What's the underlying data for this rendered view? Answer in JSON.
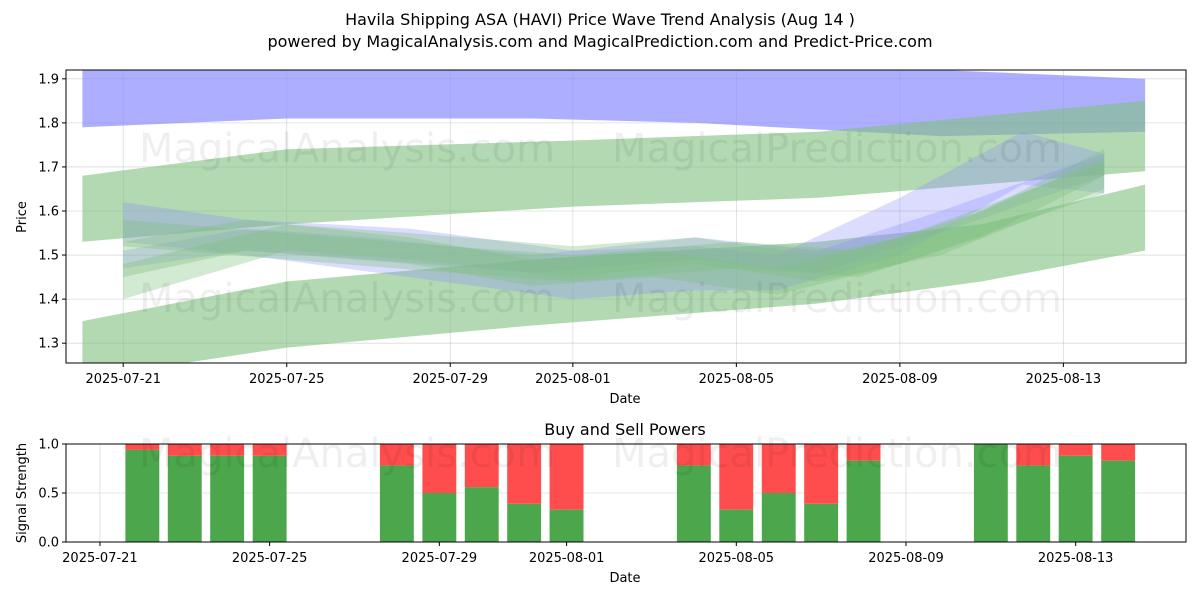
{
  "header": {
    "title": "Havila Shipping ASA (HAVI) Price Wave Trend Analysis (Aug 14 )",
    "subtitle": "powered by MagicalAnalysis.com and MagicalPrediction.com and Predict-Price.com"
  },
  "watermarks": [
    "MagicalAnalysis.com",
    "MagicalPrediction.com"
  ],
  "colors": {
    "buy": "#4ca64c",
    "sell": "#ff4d4d",
    "blue_band": "#8c8cff",
    "green_band": "#7fbf7f"
  },
  "chart_data": [
    {
      "type": "area",
      "title": "",
      "xlabel": "Date",
      "ylabel": "Price",
      "xlim": [
        "2025-07-19.6",
        "2025-08-16"
      ],
      "ylim": [
        1.255,
        1.92
      ],
      "yticks": [
        "1.3",
        "1.4",
        "1.5",
        "1.6",
        "1.7",
        "1.8",
        "1.9"
      ],
      "xticks": [
        "2025-07-21",
        "2025-07-25",
        "2025-07-29",
        "2025-08-01",
        "2025-08-05",
        "2025-08-09",
        "2025-08-13"
      ],
      "grid": true,
      "bands": [
        {
          "color": "blue",
          "opacity": 0.7,
          "x": [
            "2025-07-20",
            "2025-07-25",
            "2025-07-31",
            "2025-08-04",
            "2025-08-10",
            "2025-08-15"
          ],
          "upper": [
            1.92,
            1.92,
            1.92,
            1.92,
            1.92,
            1.9
          ],
          "lower": [
            1.79,
            1.81,
            1.81,
            1.8,
            1.77,
            1.78
          ]
        },
        {
          "color": "green",
          "opacity": 0.6,
          "x": [
            "2025-07-20",
            "2025-07-25",
            "2025-08-01",
            "2025-08-07",
            "2025-08-15"
          ],
          "upper": [
            1.68,
            1.74,
            1.76,
            1.78,
            1.85
          ],
          "lower": [
            1.53,
            1.57,
            1.61,
            1.63,
            1.69
          ]
        },
        {
          "color": "green",
          "opacity": 0.6,
          "x": [
            "2025-07-20",
            "2025-07-25",
            "2025-07-31",
            "2025-08-07",
            "2025-08-11",
            "2025-08-15"
          ],
          "upper": [
            1.35,
            1.44,
            1.49,
            1.53,
            1.57,
            1.66
          ],
          "lower": [
            1.22,
            1.29,
            1.34,
            1.39,
            1.44,
            1.51
          ]
        },
        {
          "color": "blue",
          "opacity": 0.3,
          "x": [
            "2025-07-21",
            "2025-07-24",
            "2025-07-28",
            "2025-08-01",
            "2025-08-04",
            "2025-08-06",
            "2025-08-09",
            "2025-08-12",
            "2025-08-14"
          ],
          "upper": [
            1.62,
            1.58,
            1.56,
            1.51,
            1.52,
            1.5,
            1.63,
            1.78,
            1.73
          ],
          "lower": [
            1.53,
            1.5,
            1.45,
            1.4,
            1.42,
            1.42,
            1.5,
            1.66,
            1.64
          ]
        },
        {
          "color": "blue",
          "opacity": 0.3,
          "x": [
            "2025-07-21",
            "2025-07-24",
            "2025-07-27",
            "2025-07-31",
            "2025-08-04",
            "2025-08-07",
            "2025-08-10",
            "2025-08-14"
          ],
          "upper": [
            1.51,
            1.56,
            1.54,
            1.5,
            1.54,
            1.51,
            1.6,
            1.73
          ],
          "lower": [
            1.47,
            1.51,
            1.49,
            1.46,
            1.49,
            1.46,
            1.55,
            1.68
          ]
        },
        {
          "color": "green",
          "opacity": 0.35,
          "x": [
            "2025-07-21",
            "2025-07-25",
            "2025-07-28",
            "2025-08-01",
            "2025-08-04",
            "2025-08-07",
            "2025-08-10",
            "2025-08-14"
          ],
          "upper": [
            1.48,
            1.57,
            1.55,
            1.52,
            1.54,
            1.5,
            1.56,
            1.72
          ],
          "lower": [
            1.4,
            1.51,
            1.49,
            1.45,
            1.48,
            1.44,
            1.5,
            1.65
          ]
        },
        {
          "color": "green",
          "opacity": 0.35,
          "x": [
            "2025-07-21",
            "2025-07-24",
            "2025-07-28",
            "2025-07-31",
            "2025-08-03",
            "2025-08-06",
            "2025-08-09",
            "2025-08-14"
          ],
          "upper": [
            1.53,
            1.58,
            1.54,
            1.49,
            1.51,
            1.47,
            1.54,
            1.71
          ],
          "lower": [
            1.45,
            1.51,
            1.48,
            1.43,
            1.45,
            1.41,
            1.48,
            1.64
          ]
        },
        {
          "color": "green",
          "opacity": 0.35,
          "x": [
            "2025-07-21",
            "2025-07-25",
            "2025-07-29",
            "2025-08-01",
            "2025-08-05",
            "2025-08-08",
            "2025-08-11",
            "2025-08-14"
          ],
          "upper": [
            1.58,
            1.55,
            1.52,
            1.5,
            1.53,
            1.51,
            1.6,
            1.74
          ],
          "lower": [
            1.52,
            1.49,
            1.46,
            1.44,
            1.47,
            1.45,
            1.54,
            1.68
          ]
        }
      ]
    },
    {
      "type": "bar",
      "title": "Buy and Sell Powers",
      "xlabel": "Date",
      "ylabel": "Signal Strength",
      "ylim": [
        0,
        1.0
      ],
      "yticks": [
        "0.0",
        "0.5",
        "1.0"
      ],
      "xticks": [
        "2025-07-21",
        "2025-07-25",
        "2025-07-29",
        "2025-08-01",
        "2025-08-05",
        "2025-08-09",
        "2025-08-13"
      ],
      "grid": true,
      "series": [
        {
          "name": "Buy",
          "color": "#4ca64c"
        },
        {
          "name": "Sell",
          "color": "#ff4d4d"
        }
      ],
      "categories": [
        "2025-07-22",
        "2025-07-23",
        "2025-07-24",
        "2025-07-25",
        "2025-07-28",
        "2025-07-29",
        "2025-07-30",
        "2025-07-31",
        "2025-08-01",
        "2025-08-04",
        "2025-08-05",
        "2025-08-06",
        "2025-08-07",
        "2025-08-08",
        "2025-08-11",
        "2025-08-12",
        "2025-08-13",
        "2025-08-14"
      ],
      "buy": [
        0.94,
        0.88,
        0.88,
        0.88,
        0.78,
        0.5,
        0.56,
        0.39,
        0.33,
        0.78,
        0.33,
        0.5,
        0.39,
        0.83,
        1.0,
        0.78,
        0.88,
        0.83
      ]
    }
  ]
}
